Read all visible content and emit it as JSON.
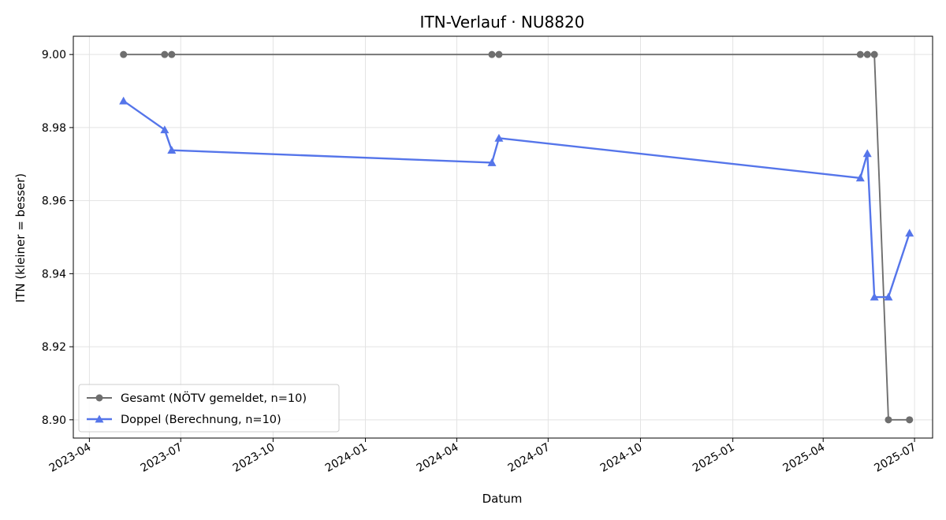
{
  "chart_data": {
    "type": "line",
    "title": "ITN-Verlauf · NU8820",
    "xlabel": "Datum",
    "ylabel": "ITN  (kleiner = besser)",
    "x_axis_type": "date",
    "xlim": [
      "2023-03-16",
      "2025-07-19"
    ],
    "ylim": [
      8.895,
      9.005
    ],
    "x_ticks": [
      "2023-04-01",
      "2023-07-01",
      "2023-10-01",
      "2024-01-01",
      "2024-04-01",
      "2024-07-01",
      "2024-10-01",
      "2025-01-01",
      "2025-04-01",
      "2025-07-01"
    ],
    "x_tick_labels": [
      "2023-04",
      "2023-07",
      "2023-10",
      "2024-01",
      "2024-04",
      "2024-07",
      "2024-10",
      "2025-01",
      "2025-04",
      "2025-07"
    ],
    "y_ticks": [
      8.9,
      8.92,
      8.94,
      8.96,
      8.98,
      9.0
    ],
    "y_tick_labels": [
      "8.90",
      "8.92",
      "8.94",
      "8.96",
      "8.98",
      "9.00"
    ],
    "grid": true,
    "legend_position": "lower-left",
    "series": [
      {
        "name": "Gesamt (NÖTV gemeldet, n=10)",
        "color": "#6e6e6e",
        "marker": "circle",
        "x": [
          "2023-05-05",
          "2023-06-15",
          "2023-06-22",
          "2024-05-06",
          "2024-05-13",
          "2025-05-08",
          "2025-05-15",
          "2025-05-22",
          "2025-06-05",
          "2025-06-26"
        ],
        "y": [
          9.0,
          9.0,
          9.0,
          9.0,
          9.0,
          9.0,
          9.0,
          9.0,
          8.9,
          8.9
        ]
      },
      {
        "name": "Doppel (Berechnung, n=10)",
        "color": "#5575ea",
        "marker": "triangle",
        "x": [
          "2023-05-05",
          "2023-06-15",
          "2023-06-22",
          "2024-05-06",
          "2024-05-13",
          "2025-05-08",
          "2025-05-15",
          "2025-05-22",
          "2025-06-05",
          "2025-06-26"
        ],
        "y": [
          8.9873,
          8.9794,
          8.9738,
          8.9704,
          8.9771,
          8.9662,
          8.9729,
          8.9336,
          8.9336,
          8.9511
        ]
      }
    ]
  }
}
